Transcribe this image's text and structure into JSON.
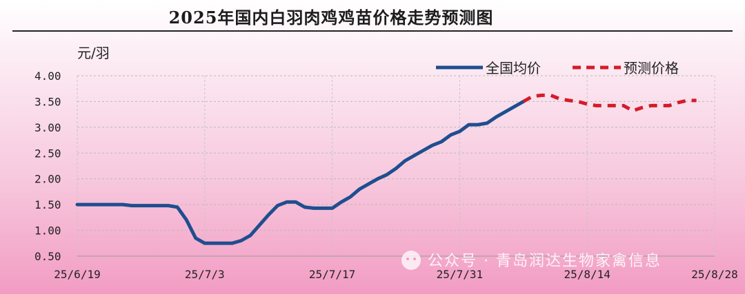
{
  "title": "2025年国内白羽肉鸡鸡苗价格走势预测图",
  "watermark": "公众号 · 青岛润达生物家禽信息",
  "chart_data": {
    "type": "line",
    "ylabel": "元/羽",
    "ylim": [
      0.5,
      4.0
    ],
    "yticks": [
      "0.50",
      "1.00",
      "1.50",
      "2.00",
      "2.50",
      "3.00",
      "3.50",
      "4.00"
    ],
    "xticks": [
      "25/6/19",
      "25/7/3",
      "25/7/17",
      "25/7/31",
      "25/8/14",
      "25/8/28"
    ],
    "grid": true,
    "legend_position": "top-right",
    "colors": {
      "actual": "#1f4e8f",
      "forecast": "#d41c2a"
    },
    "series": [
      {
        "name": "全国均价",
        "style": "solid",
        "points": [
          [
            "2025-06-19",
            1.5
          ],
          [
            "2025-06-20",
            1.5
          ],
          [
            "2025-06-21",
            1.5
          ],
          [
            "2025-06-22",
            1.5
          ],
          [
            "2025-06-23",
            1.5
          ],
          [
            "2025-06-24",
            1.5
          ],
          [
            "2025-06-25",
            1.48
          ],
          [
            "2025-06-26",
            1.48
          ],
          [
            "2025-06-27",
            1.48
          ],
          [
            "2025-06-28",
            1.48
          ],
          [
            "2025-06-29",
            1.48
          ],
          [
            "2025-06-30",
            1.45
          ],
          [
            "2025-07-01",
            1.2
          ],
          [
            "2025-07-02",
            0.85
          ],
          [
            "2025-07-03",
            0.75
          ],
          [
            "2025-07-04",
            0.75
          ],
          [
            "2025-07-05",
            0.75
          ],
          [
            "2025-07-06",
            0.75
          ],
          [
            "2025-07-07",
            0.8
          ],
          [
            "2025-07-08",
            0.9
          ],
          [
            "2025-07-09",
            1.1
          ],
          [
            "2025-07-10",
            1.3
          ],
          [
            "2025-07-11",
            1.48
          ],
          [
            "2025-07-12",
            1.55
          ],
          [
            "2025-07-13",
            1.55
          ],
          [
            "2025-07-14",
            1.45
          ],
          [
            "2025-07-15",
            1.43
          ],
          [
            "2025-07-16",
            1.43
          ],
          [
            "2025-07-17",
            1.43
          ],
          [
            "2025-07-18",
            1.55
          ],
          [
            "2025-07-19",
            1.65
          ],
          [
            "2025-07-20",
            1.8
          ],
          [
            "2025-07-21",
            1.9
          ],
          [
            "2025-07-22",
            2.0
          ],
          [
            "2025-07-23",
            2.08
          ],
          [
            "2025-07-24",
            2.2
          ],
          [
            "2025-07-25",
            2.35
          ],
          [
            "2025-07-26",
            2.45
          ],
          [
            "2025-07-27",
            2.55
          ],
          [
            "2025-07-28",
            2.65
          ],
          [
            "2025-07-29",
            2.72
          ],
          [
            "2025-07-30",
            2.85
          ],
          [
            "2025-07-31",
            2.92
          ],
          [
            "2025-08-01",
            3.05
          ],
          [
            "2025-08-02",
            3.05
          ],
          [
            "2025-08-03",
            3.08
          ],
          [
            "2025-08-04",
            3.2
          ],
          [
            "2025-08-05",
            3.3
          ],
          [
            "2025-08-06",
            3.4
          ],
          [
            "2025-08-07",
            3.5
          ]
        ]
      },
      {
        "name": "预测价格",
        "style": "dashed",
        "points": [
          [
            "2025-08-07",
            3.5
          ],
          [
            "2025-08-08",
            3.6
          ],
          [
            "2025-08-09",
            3.62
          ],
          [
            "2025-08-10",
            3.62
          ],
          [
            "2025-08-11",
            3.55
          ],
          [
            "2025-08-12",
            3.52
          ],
          [
            "2025-08-13",
            3.5
          ],
          [
            "2025-08-14",
            3.45
          ],
          [
            "2025-08-15",
            3.42
          ],
          [
            "2025-08-16",
            3.42
          ],
          [
            "2025-08-17",
            3.42
          ],
          [
            "2025-08-18",
            3.42
          ],
          [
            "2025-08-19",
            3.32
          ],
          [
            "2025-08-20",
            3.38
          ],
          [
            "2025-08-21",
            3.42
          ],
          [
            "2025-08-22",
            3.42
          ],
          [
            "2025-08-23",
            3.42
          ],
          [
            "2025-08-24",
            3.48
          ],
          [
            "2025-08-25",
            3.52
          ],
          [
            "2025-08-26",
            3.52
          ]
        ]
      }
    ]
  }
}
